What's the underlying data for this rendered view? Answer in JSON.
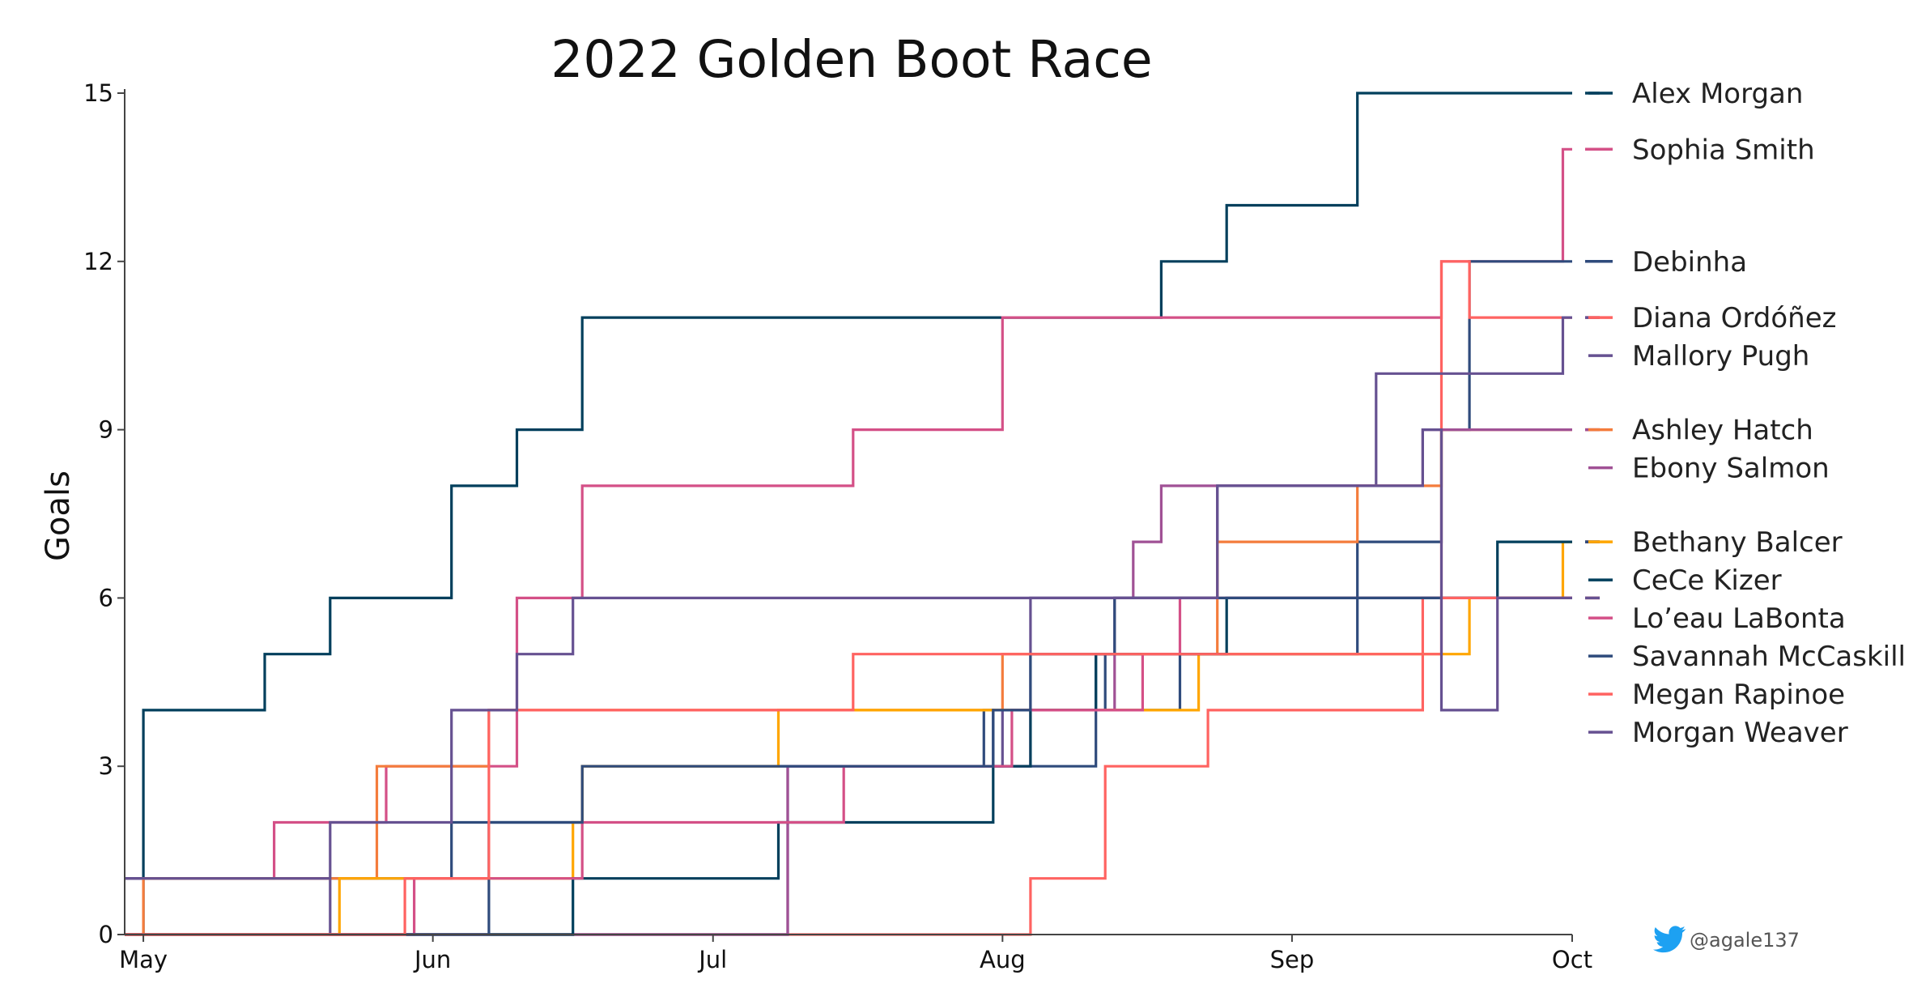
{
  "chart_data": {
    "type": "line",
    "step": "post",
    "title": "2022 Golden Boot Race",
    "xlabel": "",
    "ylabel": "Goals",
    "ylim": [
      0,
      15
    ],
    "xlim": [
      "2022-04-29",
      "2022-10-01"
    ],
    "x_ticks": [
      {
        "label": "May",
        "date": "2022-05-01"
      },
      {
        "label": "Jun",
        "date": "2022-06-01"
      },
      {
        "label": "Jul",
        "date": "2022-07-01"
      },
      {
        "label": "Aug",
        "date": "2022-08-01"
      },
      {
        "label": "Sep",
        "date": "2022-09-01"
      },
      {
        "label": "Oct",
        "date": "2022-10-01"
      }
    ],
    "y_ticks": [
      0,
      3,
      6,
      9,
      12,
      15
    ],
    "grid": false,
    "legend": "right",
    "series": [
      {
        "name": "Alex Morgan",
        "color": "#003f5c",
        "final": 15,
        "points": [
          [
            "2022-04-29",
            0
          ],
          [
            "2022-05-01",
            4
          ],
          [
            "2022-05-14",
            5
          ],
          [
            "2022-05-21",
            6
          ],
          [
            "2022-06-03",
            8
          ],
          [
            "2022-06-10",
            9
          ],
          [
            "2022-06-17",
            11
          ],
          [
            "2022-08-18",
            12
          ],
          [
            "2022-08-25",
            13
          ],
          [
            "2022-09-08",
            15
          ]
        ]
      },
      {
        "name": "Sophia Smith",
        "color": "#d45087",
        "final": 14,
        "points": [
          [
            "2022-04-29",
            1
          ],
          [
            "2022-05-15",
            2
          ],
          [
            "2022-05-27",
            3
          ],
          [
            "2022-06-10",
            6
          ],
          [
            "2022-06-17",
            8
          ],
          [
            "2022-07-16",
            9
          ],
          [
            "2022-08-01",
            11
          ],
          [
            "2022-09-17",
            12
          ],
          [
            "2022-09-30",
            14
          ]
        ]
      },
      {
        "name": "Debinha",
        "color": "#2f4b7c",
        "final": 12,
        "points": [
          [
            "2022-04-29",
            1
          ],
          [
            "2022-06-03",
            2
          ],
          [
            "2022-06-17",
            3
          ],
          [
            "2022-07-30",
            4
          ],
          [
            "2022-07-31",
            3
          ],
          [
            "2022-08-11",
            5
          ],
          [
            "2022-08-12",
            4
          ],
          [
            "2022-08-20",
            5
          ],
          [
            "2022-09-08",
            7
          ],
          [
            "2022-09-17",
            9
          ],
          [
            "2022-09-20",
            12
          ]
        ]
      },
      {
        "name": "Diana Ordóñez",
        "color": "#ff6361",
        "final": 11,
        "points": [
          [
            "2022-04-29",
            0
          ],
          [
            "2022-08-04",
            1
          ],
          [
            "2022-08-12",
            3
          ],
          [
            "2022-08-23",
            4
          ],
          [
            "2022-09-15",
            6
          ],
          [
            "2022-09-17",
            12
          ],
          [
            "2022-09-20",
            11
          ]
        ]
      },
      {
        "name": "Mallory Pugh",
        "color": "#665191",
        "final": 11,
        "points": [
          [
            "2022-04-29",
            1
          ],
          [
            "2022-05-21",
            0
          ],
          [
            "2022-07-09",
            3
          ],
          [
            "2022-08-01",
            4
          ],
          [
            "2022-08-04",
            6
          ],
          [
            "2022-08-24",
            8
          ],
          [
            "2022-09-10",
            10
          ],
          [
            "2022-09-30",
            11
          ]
        ]
      },
      {
        "name": "Ashley Hatch",
        "color": "#f47c3c",
        "final": 9,
        "points": [
          [
            "2022-04-30",
            0
          ],
          [
            "2022-05-01",
            1
          ],
          [
            "2022-05-26",
            3
          ],
          [
            "2022-06-07",
            4
          ],
          [
            "2022-08-01",
            5
          ],
          [
            "2022-08-24",
            7
          ],
          [
            "2022-09-08",
            8
          ],
          [
            "2022-09-17",
            9
          ]
        ]
      },
      {
        "name": "Ebony Salmon",
        "color": "#a05195",
        "final": 9,
        "points": [
          [
            "2022-04-29",
            0
          ],
          [
            "2022-07-09",
            3
          ],
          [
            "2022-08-04",
            4
          ],
          [
            "2022-08-13",
            6
          ],
          [
            "2022-08-15",
            7
          ],
          [
            "2022-08-18",
            8
          ],
          [
            "2022-09-15",
            9
          ]
        ]
      },
      {
        "name": "Bethany Balcer",
        "color": "#ffa600",
        "final": 7,
        "points": [
          [
            "2022-04-29",
            0
          ],
          [
            "2022-05-22",
            1
          ],
          [
            "2022-06-03",
            1
          ],
          [
            "2022-06-16",
            2
          ],
          [
            "2022-06-17",
            3
          ],
          [
            "2022-07-08",
            4
          ],
          [
            "2022-08-22",
            5
          ],
          [
            "2022-09-08",
            5
          ],
          [
            "2022-09-20",
            6
          ],
          [
            "2022-09-30",
            7
          ]
        ]
      },
      {
        "name": "CeCe Kizer",
        "color": "#003f5c",
        "final": 7,
        "points": [
          [
            "2022-04-29",
            0
          ],
          [
            "2022-06-16",
            1
          ],
          [
            "2022-07-08",
            2
          ],
          [
            "2022-07-31",
            3
          ],
          [
            "2022-08-04",
            4
          ],
          [
            "2022-08-11",
            5
          ],
          [
            "2022-08-25",
            6
          ],
          [
            "2022-09-23",
            7
          ]
        ]
      },
      {
        "name": "Lo’eau LaBonta",
        "color": "#d45087",
        "final": 7,
        "points": [
          [
            "2022-04-29",
            0
          ],
          [
            "2022-05-30",
            1
          ],
          [
            "2022-06-17",
            2
          ],
          [
            "2022-07-15",
            3
          ],
          [
            "2022-08-02",
            4
          ],
          [
            "2022-08-16",
            5
          ],
          [
            "2022-08-20",
            6
          ]
        ]
      },
      {
        "name": "Savannah McCaskill",
        "color": "#2f4b7c",
        "final": 7,
        "points": [
          [
            "2022-04-29",
            0
          ],
          [
            "2022-06-07",
            2
          ],
          [
            "2022-06-17",
            3
          ],
          [
            "2022-07-31",
            4
          ],
          [
            "2022-08-04",
            5
          ],
          [
            "2022-08-13",
            6
          ],
          [
            "2022-08-20",
            6
          ]
        ]
      },
      {
        "name": "Megan Rapinoe",
        "color": "#ff6361",
        "final": 6,
        "points": [
          [
            "2022-04-29",
            0
          ],
          [
            "2022-05-29",
            1
          ],
          [
            "2022-06-07",
            4
          ],
          [
            "2022-07-16",
            5
          ],
          [
            "2022-08-24",
            5
          ],
          [
            "2022-09-15",
            5
          ],
          [
            "2022-09-17",
            6
          ]
        ]
      },
      {
        "name": "Morgan Weaver",
        "color": "#665191",
        "final": 6,
        "points": [
          [
            "2022-04-29",
            1
          ],
          [
            "2022-05-21",
            2
          ],
          [
            "2022-06-03",
            4
          ],
          [
            "2022-06-10",
            5
          ],
          [
            "2022-06-16",
            6
          ],
          [
            "2022-08-24",
            8
          ],
          [
            "2022-09-15",
            9
          ],
          [
            "2022-09-17",
            4
          ],
          [
            "2022-09-23",
            6
          ]
        ]
      }
    ]
  },
  "legend_items": [
    {
      "name": "Alex Morgan",
      "color": "#003f5c"
    },
    {
      "name": "Sophia Smith",
      "color": "#d45087"
    },
    {
      "name": "Debinha",
      "color": "#2f4b7c"
    },
    {
      "name": "Diana Ordóñez",
      "color": "#ff6361"
    },
    {
      "name": "Mallory Pugh",
      "color": "#665191"
    },
    {
      "name": "Ashley Hatch",
      "color": "#f47c3c"
    },
    {
      "name": "Ebony Salmon",
      "color": "#a05195"
    },
    {
      "name": "Bethany Balcer",
      "color": "#ffa600"
    },
    {
      "name": "CeCe Kizer",
      "color": "#003f5c"
    },
    {
      "name": "Lo’eau LaBonta",
      "color": "#d45087"
    },
    {
      "name": "Savannah McCaskill",
      "color": "#2f4b7c"
    },
    {
      "name": "Megan Rapinoe",
      "color": "#ff6361"
    },
    {
      "name": "Morgan Weaver",
      "color": "#665191"
    }
  ],
  "credit": {
    "handle": "@agale137",
    "icon": "twitter-bird-icon",
    "icon_color": "#1da1f2"
  }
}
